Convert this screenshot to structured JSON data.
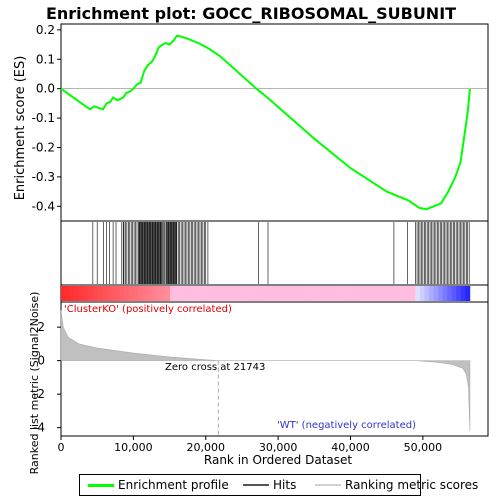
{
  "chart_data": {
    "type": "line",
    "title": "Enrichment plot: GOCC_RIBOSOMAL_SUBUNIT",
    "top_panel": {
      "ylabel": "Enrichment score (ES)",
      "ylim": [
        -0.45,
        0.22
      ],
      "yticks": [
        -0.4,
        -0.3,
        -0.2,
        -0.1,
        0.0,
        0.1,
        0.2
      ],
      "series": [
        {
          "name": "Enrichment profile",
          "color": "#00ff00",
          "points": [
            [
              0,
              0.0
            ],
            [
              4000,
              -0.07
            ],
            [
              4600,
              -0.06
            ],
            [
              5200,
              -0.065
            ],
            [
              5800,
              -0.07
            ],
            [
              6300,
              -0.05
            ],
            [
              6800,
              -0.045
            ],
            [
              7200,
              -0.03
            ],
            [
              7800,
              -0.04
            ],
            [
              8600,
              -0.03
            ],
            [
              9000,
              -0.015
            ],
            [
              9500,
              -0.01
            ],
            [
              10000,
              0.0
            ],
            [
              10500,
              0.015
            ],
            [
              11000,
              0.02
            ],
            [
              11500,
              0.06
            ],
            [
              12000,
              0.08
            ],
            [
              12500,
              0.09
            ],
            [
              13000,
              0.11
            ],
            [
              13500,
              0.14
            ],
            [
              14000,
              0.15
            ],
            [
              14500,
              0.155
            ],
            [
              15000,
              0.15
            ],
            [
              15600,
              0.165
            ],
            [
              16000,
              0.18
            ],
            [
              16500,
              0.178
            ],
            [
              17500,
              0.17
            ],
            [
              19000,
              0.155
            ],
            [
              20500,
              0.135
            ],
            [
              22000,
              0.11
            ],
            [
              27000,
              0.0
            ],
            [
              28500,
              -0.03
            ],
            [
              35000,
              -0.17
            ],
            [
              40000,
              -0.27
            ],
            [
              45000,
              -0.35
            ],
            [
              48000,
              -0.38
            ],
            [
              49500,
              -0.405
            ],
            [
              50500,
              -0.41
            ],
            [
              51500,
              -0.4
            ],
            [
              52500,
              -0.39
            ],
            [
              53500,
              -0.35
            ],
            [
              54500,
              -0.3
            ],
            [
              55200,
              -0.25
            ],
            [
              55800,
              -0.15
            ],
            [
              56200,
              -0.08
            ],
            [
              56500,
              0.0
            ]
          ]
        }
      ]
    },
    "hits": {
      "name": "Hits",
      "positions": [
        4400,
        5000,
        5900,
        6300,
        6700,
        7200,
        7600,
        8400,
        8600,
        8700,
        8900,
        9100,
        9300,
        9500,
        9700,
        9900,
        10100,
        10300,
        10500,
        10700,
        10800,
        10900,
        11000,
        11100,
        11200,
        11300,
        11400,
        11500,
        11600,
        11700,
        11800,
        11900,
        12000,
        12100,
        12200,
        12300,
        12400,
        12500,
        12600,
        12700,
        12800,
        12900,
        13000,
        13100,
        13200,
        13300,
        13400,
        13500,
        13600,
        13700,
        13800,
        13900,
        14000,
        14200,
        14300,
        14500,
        14600,
        14700,
        14800,
        14900,
        15000,
        15100,
        15200,
        15300,
        15400,
        15500,
        15600,
        15700,
        15800,
        15900,
        16000,
        16200,
        16400,
        16600,
        16800,
        17000,
        17200,
        17400,
        17600,
        17800,
        18000,
        18200,
        18400,
        18600,
        18800,
        19000,
        19200,
        19400,
        19600,
        19800,
        20000,
        20300,
        27300,
        28600,
        46000,
        47900,
        49000,
        49200,
        49400,
        49600,
        49800,
        50000,
        50200,
        50400,
        50600,
        50800,
        51000,
        51200,
        51400,
        51600,
        51800,
        52000,
        52200,
        52400,
        52600,
        52800,
        53000,
        53200,
        53400,
        53600,
        53800,
        54000,
        54200,
        54400,
        54600,
        54800,
        55000,
        55200,
        55400,
        55600,
        55800,
        56000,
        56200,
        56400
      ]
    },
    "bottom_panel": {
      "ylabel": "Ranked list metric (Signal2Noise)",
      "ylim": [
        -4.5,
        3.5
      ],
      "yticks": [
        -4,
        -2,
        0,
        2
      ],
      "series": [
        {
          "name": "Ranking metric scores",
          "color": "#c0c0c0",
          "points": [
            [
              0,
              3.0
            ],
            [
              300,
              2.0
            ],
            [
              1000,
              1.4
            ],
            [
              2500,
              1.0
            ],
            [
              5000,
              0.75
            ],
            [
              10000,
              0.45
            ],
            [
              15000,
              0.22
            ],
            [
              20000,
              0.05
            ],
            [
              21743,
              0.0
            ],
            [
              49000,
              0.0
            ],
            [
              52000,
              -0.1
            ],
            [
              54000,
              -0.22
            ],
            [
              55500,
              -0.45
            ],
            [
              56000,
              -0.8
            ],
            [
              56300,
              -1.6
            ],
            [
              56500,
              -4.2
            ]
          ]
        }
      ],
      "zero_cross_label": "Zero cross at 21743",
      "zero_cross": 21743,
      "pos_label": "'ClusterKO' (positively correlated)",
      "neg_label": "'WT' (negatively correlated)"
    },
    "xlabel": "Rank in Ordered Dataset",
    "xlim": [
      0,
      59000
    ],
    "xticks": [
      0,
      10000,
      20000,
      30000,
      40000,
      50000
    ],
    "xtick_labels": [
      "0",
      "10,000",
      "20,000",
      "30,000",
      "40,000",
      "50,000"
    ],
    "n_genes": 56500,
    "legend": [
      {
        "label": "Enrichment profile",
        "color": "#00ff00"
      },
      {
        "label": "Hits",
        "color": "#000000"
      },
      {
        "label": "Ranking metric scores",
        "color": "#d3d3d3"
      }
    ]
  }
}
